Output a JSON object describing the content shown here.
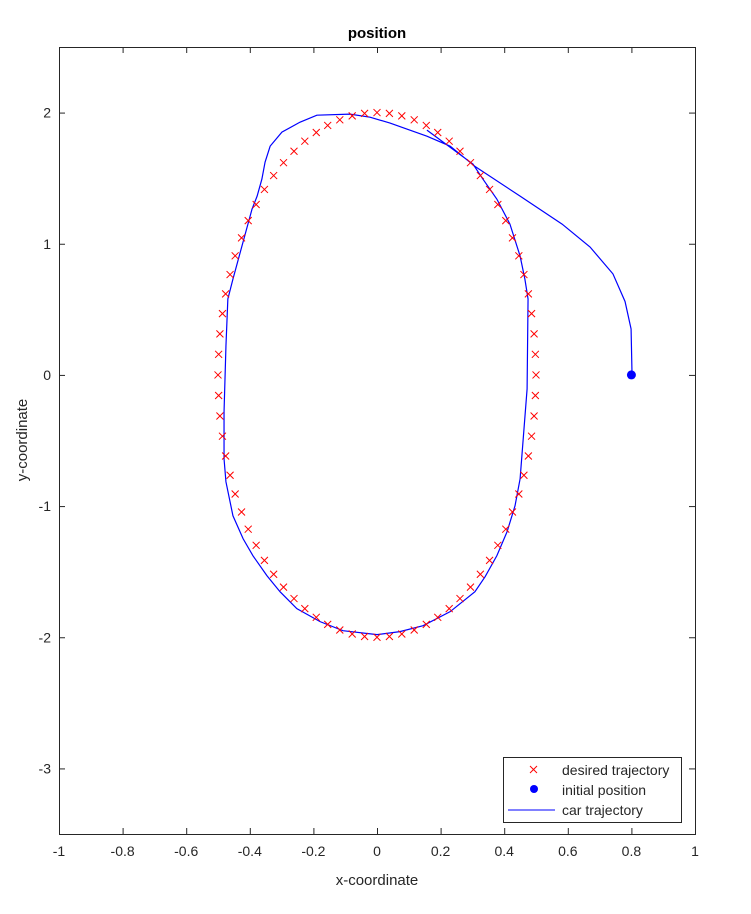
{
  "chart_data": {
    "type": "line",
    "title": "position",
    "xlabel": "x-coordinate",
    "ylabel": "y-coordinate",
    "xlim": [
      -1,
      1
    ],
    "ylim": [
      -3.5,
      2.5
    ],
    "xticks": [
      -1,
      -0.8,
      -0.6,
      -0.4,
      -0.2,
      0,
      0.2,
      0.4,
      0.6,
      0.8,
      1
    ],
    "xticklabels": [
      "-1",
      "-0.8",
      "-0.6",
      "-0.4",
      "-0.2",
      "0",
      "0.2",
      "0.4",
      "0.6",
      "0.8",
      "1"
    ],
    "yticks": [
      -3,
      -2,
      -1,
      0,
      1,
      2
    ],
    "yticklabels": [
      "-3",
      "-2",
      "-1",
      "0",
      "1",
      "2"
    ],
    "grid": false,
    "legend_position": "bottom-right",
    "series": [
      {
        "name": "desired trajectory",
        "style": "markers-x",
        "color": "#ff0000",
        "x": [
          0,
          0.039,
          0.078,
          0.117,
          0.155,
          0.191,
          0.227,
          0.261,
          0.294,
          0.325,
          0.354,
          0.38,
          0.405,
          0.426,
          0.446,
          0.462,
          0.476,
          0.486,
          0.494,
          0.498,
          0.5,
          0.498,
          0.494,
          0.486,
          0.476,
          0.462,
          0.446,
          0.426,
          0.405,
          0.38,
          0.354,
          0.325,
          0.294,
          0.261,
          0.227,
          0.191,
          0.155,
          0.117,
          0.078,
          0.039,
          0,
          -0.039,
          -0.078,
          -0.117,
          -0.155,
          -0.191,
          -0.227,
          -0.261,
          -0.294,
          -0.325,
          -0.354,
          -0.38,
          -0.405,
          -0.426,
          -0.446,
          -0.462,
          -0.476,
          -0.486,
          -0.494,
          -0.498,
          -0.5,
          -0.498,
          -0.494,
          -0.486,
          -0.476,
          -0.462,
          -0.446,
          -0.426,
          -0.405,
          -0.38,
          -0.354,
          -0.325,
          -0.294,
          -0.261,
          -0.227,
          -0.191,
          -0.155,
          -0.117,
          -0.078,
          -0.039
        ],
        "y": [
          2,
          1.994,
          1.975,
          1.945,
          1.902,
          1.848,
          1.782,
          1.705,
          1.618,
          1.52,
          1.414,
          1.299,
          1.176,
          1.045,
          0.908,
          0.765,
          0.618,
          0.467,
          0.313,
          0.157,
          0,
          -0.157,
          -0.313,
          -0.467,
          -0.618,
          -0.765,
          -0.908,
          -1.045,
          -1.176,
          -1.299,
          -1.414,
          -1.52,
          -1.618,
          -1.705,
          -1.782,
          -1.848,
          -1.902,
          -1.945,
          -1.975,
          -1.994,
          -2,
          -1.994,
          -1.975,
          -1.945,
          -1.902,
          -1.848,
          -1.782,
          -1.705,
          -1.618,
          -1.52,
          -1.414,
          -1.299,
          -1.176,
          -1.045,
          -0.908,
          -0.765,
          -0.618,
          -0.467,
          -0.313,
          -0.157,
          0,
          0.157,
          0.313,
          0.467,
          0.618,
          0.765,
          0.908,
          1.045,
          1.176,
          1.299,
          1.414,
          1.52,
          1.618,
          1.705,
          1.782,
          1.848,
          1.902,
          1.945,
          1.975,
          1.994
        ]
      },
      {
        "name": "initial position",
        "style": "marker-filled",
        "color": "#0000ff",
        "x": [
          0.8
        ],
        "y": [
          0
        ]
      },
      {
        "name": "car trajectory",
        "style": "line",
        "color": "#0000ff",
        "x": [
          0.802,
          0.799,
          0.78,
          0.742,
          0.67,
          0.582,
          0.45,
          0.308,
          0.292,
          0.23,
          0.157,
          0.041,
          -0.022,
          -0.085,
          -0.189,
          -0.242,
          -0.299,
          -0.336,
          -0.352,
          -0.362,
          -0.377,
          -0.393,
          -0.453,
          -0.469,
          -0.475,
          -0.478,
          -0.481,
          -0.481,
          -0.475,
          -0.453,
          -0.421,
          -0.39,
          -0.346,
          -0.305,
          -0.252,
          -0.179,
          -0.107,
          0,
          0.072,
          0.145,
          0.23,
          0.308,
          0.34,
          0.377,
          0.409,
          0.434,
          0.45,
          0.472,
          0.475,
          0.465,
          0.45,
          0.418,
          0.377,
          0.333,
          0.302,
          0.23,
          0.157
        ],
        "y": [
          0,
          0.35,
          0.56,
          0.77,
          0.975,
          1.15,
          1.363,
          1.59,
          1.622,
          1.744,
          1.82,
          1.92,
          1.965,
          1.988,
          1.98,
          1.927,
          1.851,
          1.744,
          1.622,
          1.493,
          1.363,
          1.264,
          0.731,
          0.579,
          0.221,
          -0.03,
          -0.282,
          -0.64,
          -0.815,
          -1.074,
          -1.249,
          -1.379,
          -1.531,
          -1.653,
          -1.782,
          -1.881,
          -1.95,
          -1.98,
          -1.957,
          -1.912,
          -1.805,
          -1.653,
          -1.538,
          -1.378,
          -1.196,
          -0.998,
          -0.792,
          -0.107,
          0.579,
          0.731,
          0.906,
          1.15,
          1.34,
          1.493,
          1.607,
          1.736,
          1.866
        ]
      }
    ]
  }
}
